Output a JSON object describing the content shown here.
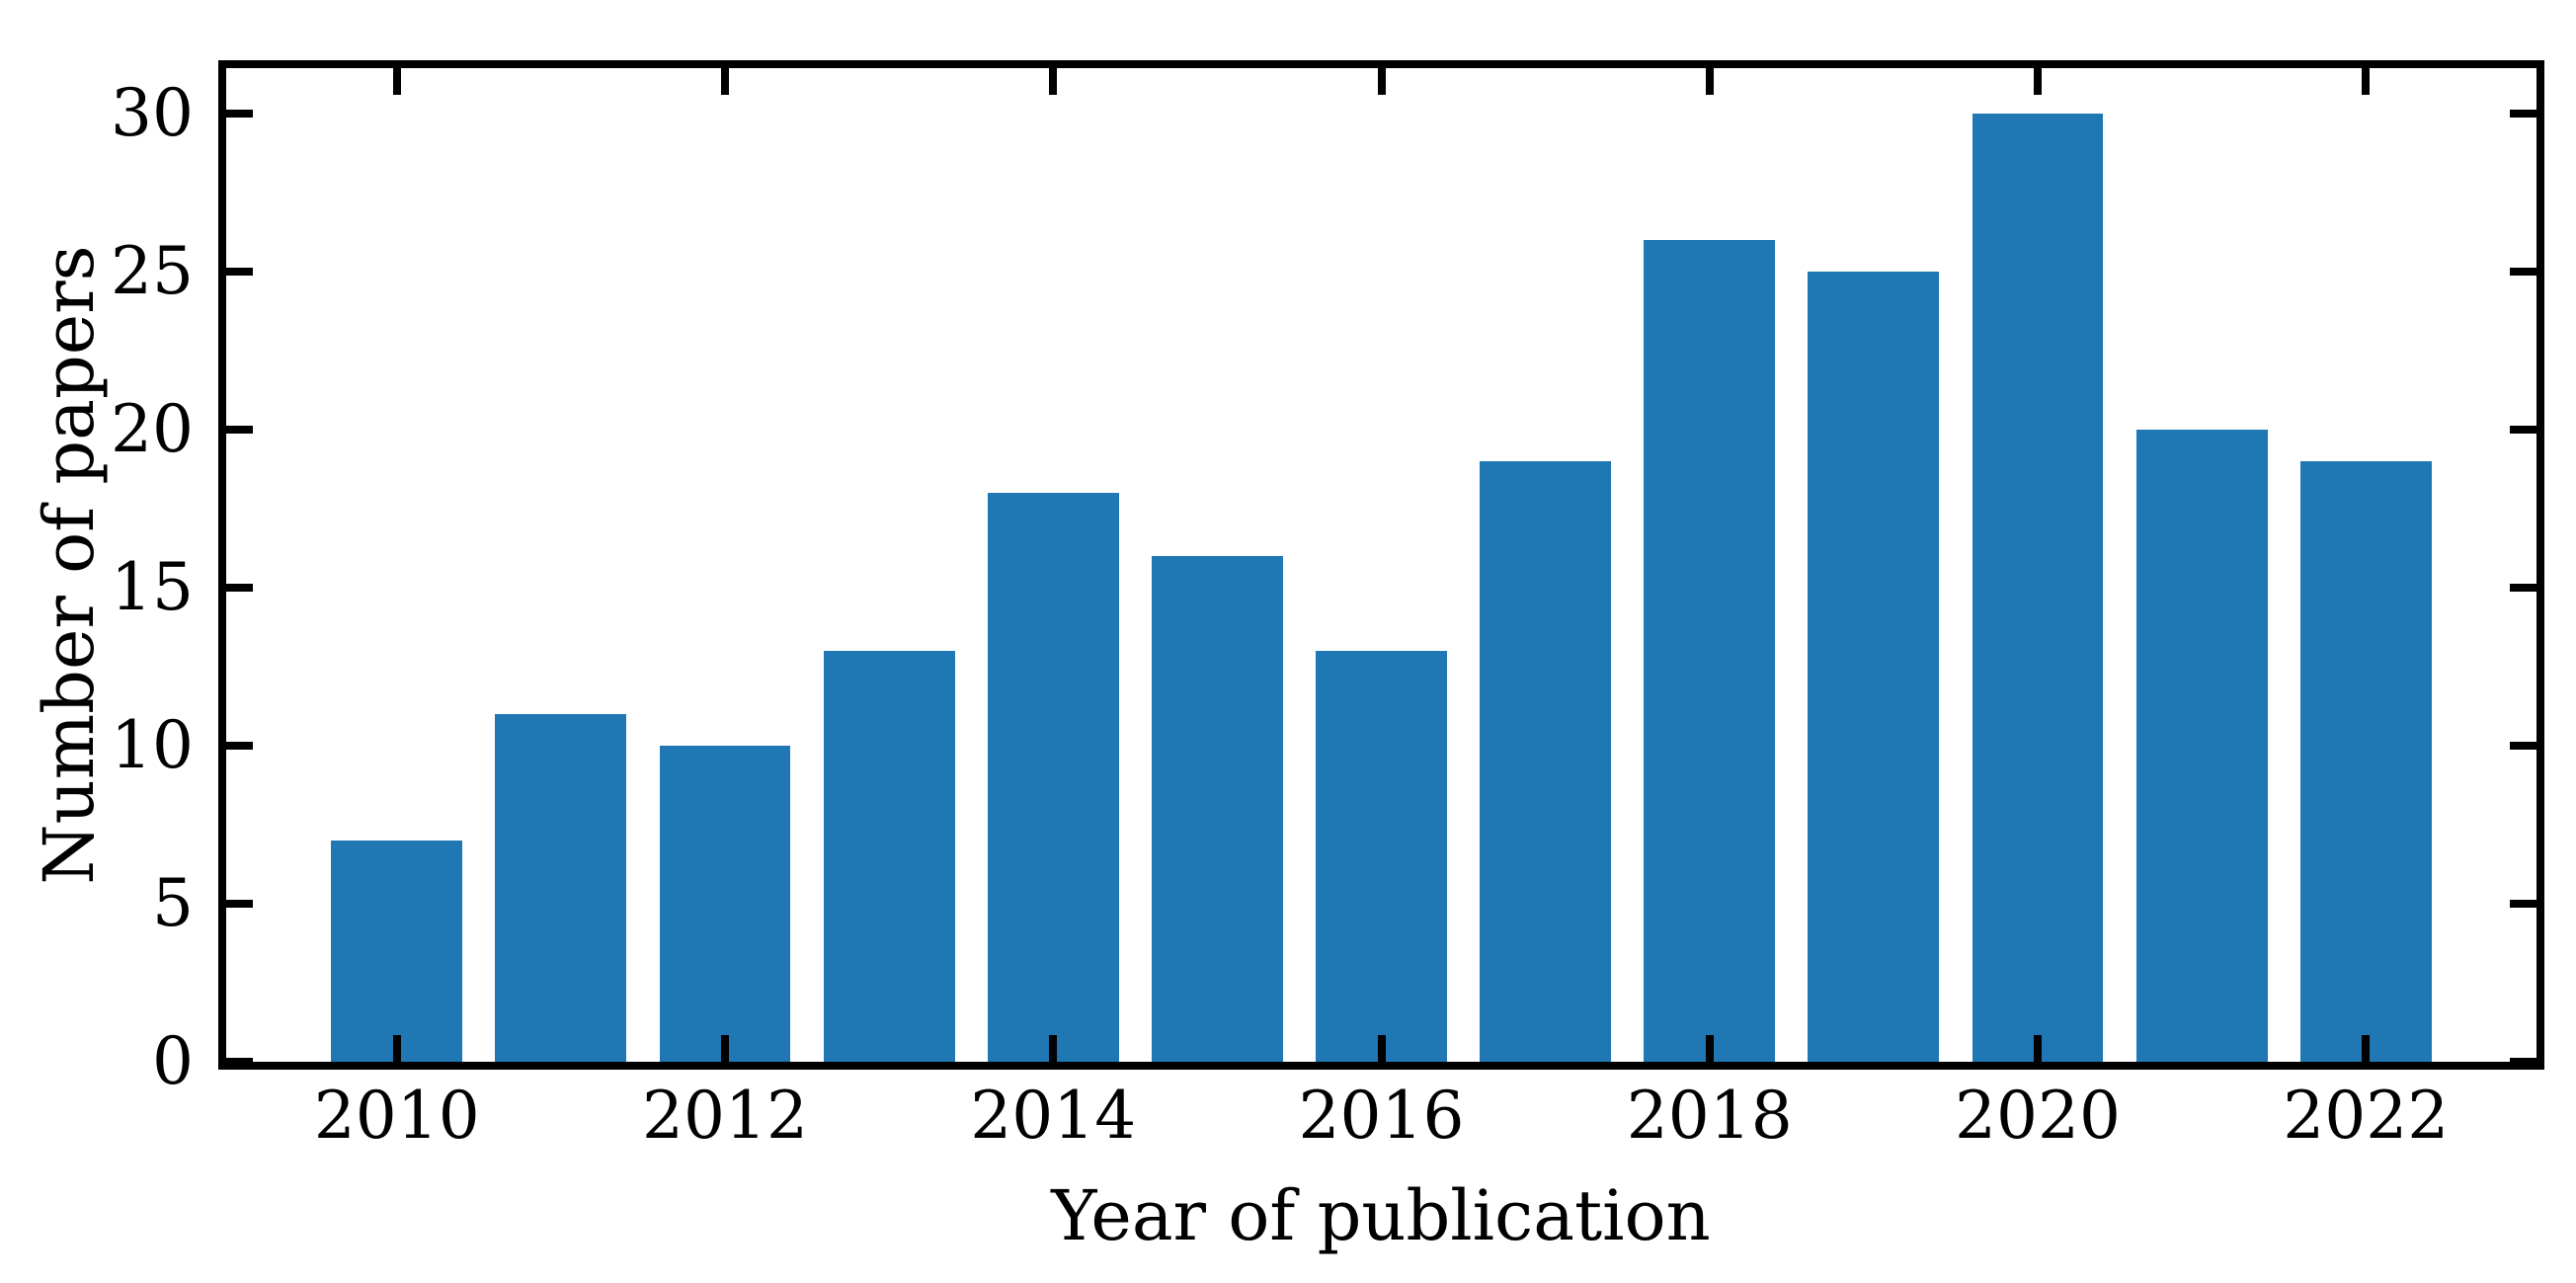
{
  "chart_data": {
    "type": "bar",
    "categories": [
      2010,
      2011,
      2012,
      2013,
      2014,
      2015,
      2016,
      2017,
      2018,
      2019,
      2020,
      2021,
      2022
    ],
    "values": [
      7,
      11,
      10,
      13,
      18,
      16,
      13,
      19,
      26,
      25,
      30,
      20,
      19
    ],
    "title": "",
    "xlabel": "Year of publication",
    "ylabel": "Number of papers",
    "xticks_labeled": [
      2010,
      2012,
      2014,
      2016,
      2018,
      2020,
      2022
    ],
    "yticks": [
      0,
      5,
      10,
      15,
      20,
      25,
      30
    ],
    "xlim": [
      2008.96,
      2023.04
    ],
    "ylim": [
      0,
      31.45
    ],
    "bar_width_fraction": 0.8,
    "bar_color": "#1f77b4",
    "axis_color": "#000000",
    "text_color": "#000000",
    "tick_direction": "in",
    "ticks_all_sides": true,
    "grid": false,
    "legend": null
  }
}
